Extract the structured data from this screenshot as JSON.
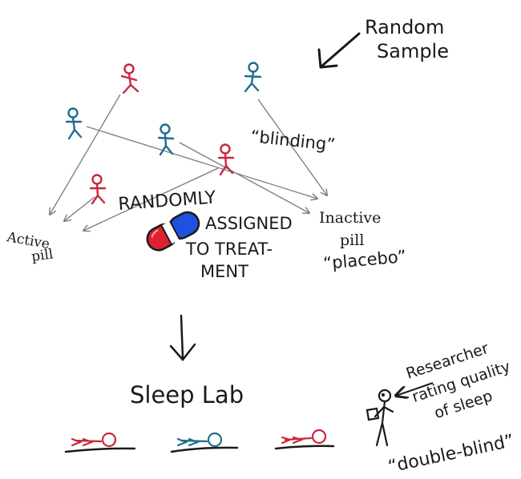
{
  "labels": {
    "random_sample_line1": "Random",
    "random_sample_line2": "Sample",
    "blinding": "“blinding”",
    "randomly": "RANDOMLY",
    "assigned": "ASSIGNED",
    "to_treat": "TO TREAT-",
    "ment": "MENT",
    "active_line1": "Active",
    "active_line2": "pill",
    "inactive_line1": "Inactive",
    "inactive_line2": "pill",
    "placebo": "“placebo”",
    "sleep_lab": "Sleep Lab",
    "researcher_line1": "Researcher",
    "researcher_line2": "rating quality",
    "researcher_line3": "of sleep",
    "double_blind": "“double-blind”"
  },
  "colors": {
    "ink": "#1a1a1a",
    "red_group": "#c8283c",
    "blue_group": "#1e6e8c",
    "pill_red": "#e02030",
    "pill_blue": "#2050e0",
    "arrow_gray": "#7a7a7a"
  },
  "icons": {
    "people": "stick-figure-icon",
    "pill": "capsule-pill-icon",
    "sleeper": "sleeping-person-icon",
    "researcher": "researcher-figure-icon"
  }
}
